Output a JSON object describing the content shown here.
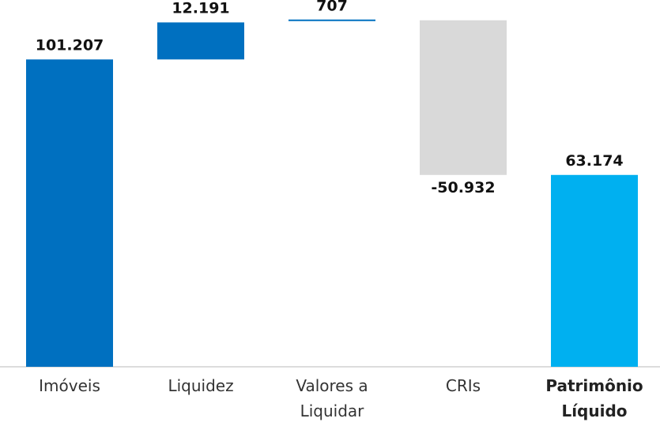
{
  "chart_data": {
    "type": "waterfall",
    "categories": [
      "Imóveis",
      "Liquidez",
      "Valores a Liquidar",
      "CRIs",
      "Patrimônio Líquido"
    ],
    "values": [
      101207,
      12191,
      707,
      -50932,
      63174
    ],
    "value_labels": [
      "101.207",
      "12.191",
      "707",
      "-50.932",
      "63.174"
    ],
    "colors": [
      "#0070c0",
      "#0070c0",
      "#0070c0",
      "#d9d9d9",
      "#00b0f0"
    ],
    "is_total": [
      false,
      false,
      false,
      false,
      true
    ],
    "ylim": [
      0,
      120000
    ]
  }
}
